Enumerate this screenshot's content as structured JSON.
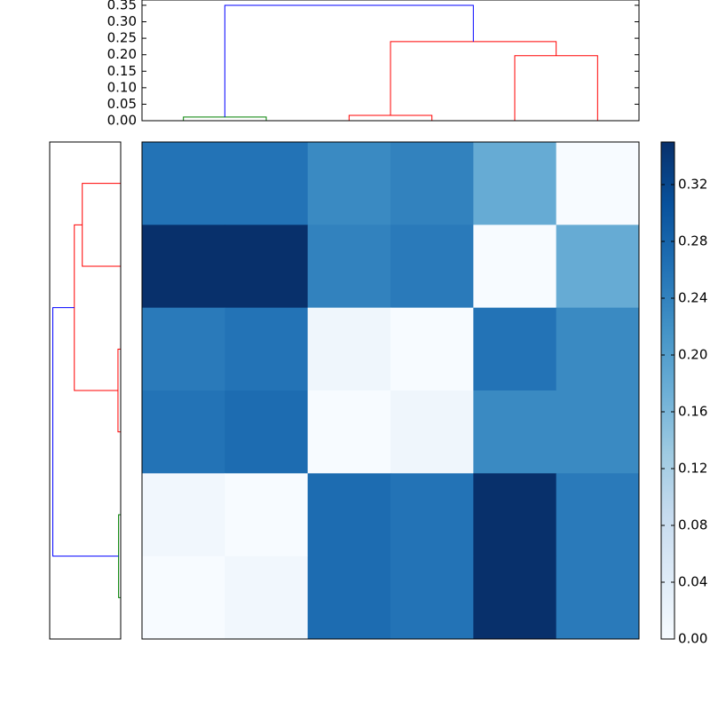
{
  "chart_data": [
    {
      "type": "dendrogram",
      "orientation": "top",
      "ylim": [
        0,
        0.366
      ],
      "yticks": [
        {
          "value": 0,
          "label": "0.00"
        },
        {
          "value": 0.05,
          "label": "0.05"
        },
        {
          "value": 0.1,
          "label": "0.10"
        },
        {
          "value": 0.15,
          "label": "0.15"
        },
        {
          "value": 0.2,
          "label": "0.20"
        },
        {
          "value": 0.25,
          "label": "0.25"
        },
        {
          "value": 0.3,
          "label": "0.30"
        },
        {
          "value": 0.35,
          "label": "0.35"
        }
      ],
      "xlim": [
        -0.5,
        5.5
      ],
      "links": [
        {
          "color": "#008000",
          "x": [
            0,
            0,
            1,
            1
          ],
          "y": [
            0,
            0.011,
            0.011,
            0
          ]
        },
        {
          "color": "#ff0000",
          "x": [
            2,
            2,
            3,
            3
          ],
          "y": [
            0,
            0.016,
            0.016,
            0
          ]
        },
        {
          "color": "#ff0000",
          "x": [
            4,
            4,
            5,
            5
          ],
          "y": [
            0,
            0.197,
            0.197,
            0
          ]
        },
        {
          "color": "#ff0000",
          "x": [
            2.5,
            2.5,
            4.5,
            4.5
          ],
          "y": [
            0.016,
            0.24,
            0.24,
            0.197
          ]
        },
        {
          "color": "#0000ff",
          "x": [
            0.5,
            0.5,
            3.5,
            3.5
          ],
          "y": [
            0.011,
            0.35,
            0.35,
            0.24
          ]
        }
      ]
    },
    {
      "type": "dendrogram",
      "orientation": "left",
      "xlim": [
        0,
        0.366
      ],
      "ylim": [
        -0.5,
        5.5
      ],
      "links": [
        {
          "color": "#ff0000",
          "x": [
            0,
            0,
            1,
            1
          ],
          "y": [
            0,
            0.198,
            0.198,
            0
          ]
        },
        {
          "color": "#ff0000",
          "x": [
            2,
            2,
            3,
            3
          ],
          "y": [
            0,
            0.014,
            0.014,
            0
          ]
        },
        {
          "color": "#008000",
          "x": [
            4,
            4,
            5,
            5
          ],
          "y": [
            0,
            0.011,
            0.011,
            0
          ]
        },
        {
          "color": "#ff0000",
          "x": [
            0.5,
            0.5,
            2.5,
            2.5
          ],
          "y": [
            0.198,
            0.239,
            0.239,
            0.014
          ]
        },
        {
          "color": "#0000ff",
          "x": [
            1.5,
            1.5,
            4.5,
            4.5
          ],
          "y": [
            0.239,
            0.35,
            0.35,
            0.011
          ]
        }
      ]
    },
    {
      "type": "heatmap",
      "values": [
        [
          0.26,
          0.26,
          0.23,
          0.24,
          0.18,
          0.0
        ],
        [
          0.35,
          0.35,
          0.24,
          0.25,
          0.0,
          0.18
        ],
        [
          0.25,
          0.26,
          0.014,
          0.0,
          0.26,
          0.23
        ],
        [
          0.26,
          0.27,
          0.0,
          0.014,
          0.23,
          0.23
        ],
        [
          0.011,
          0.0,
          0.27,
          0.26,
          0.35,
          0.25
        ],
        [
          0.0,
          0.011,
          0.27,
          0.26,
          0.35,
          0.25
        ]
      ],
      "colors": [
        "#f7fbff",
        "#deebf7",
        "#c6dbef",
        "#9ecae1",
        "#6baed6",
        "#4292c6",
        "#2171b5",
        "#08519c",
        "#08306b"
      ],
      "clim": [
        0,
        0.35
      ],
      "cticks": [
        {
          "value": 0,
          "label": "0.00"
        },
        {
          "value": 0.04,
          "label": "0.04"
        },
        {
          "value": 0.08,
          "label": "0.08"
        },
        {
          "value": 0.12,
          "label": "0.12"
        },
        {
          "value": 0.16,
          "label": "0.16"
        },
        {
          "value": 0.2,
          "label": "0.20"
        },
        {
          "value": 0.24,
          "label": "0.24"
        },
        {
          "value": 0.28,
          "label": "0.28"
        },
        {
          "value": 0.32,
          "label": "0.32"
        }
      ]
    }
  ]
}
